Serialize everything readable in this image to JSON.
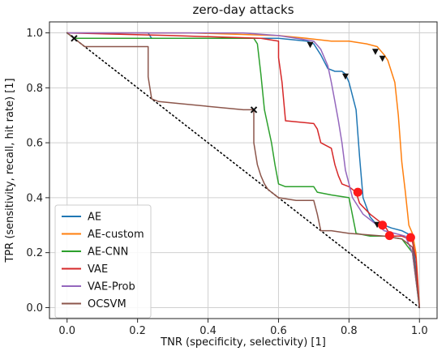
{
  "chart_data": {
    "type": "line",
    "title": "zero-day attacks",
    "xlabel": "TNR (specificity, selectivity) [1]",
    "ylabel": "TPR (sensitivity, recall, hit rate) [1]",
    "xlim": [
      -0.05,
      1.05
    ],
    "ylim": [
      -0.04,
      1.04
    ],
    "xticks": [
      "0.0",
      "0.2",
      "0.4",
      "0.6",
      "0.8",
      "1.0"
    ],
    "yticks": [
      "0.0",
      "0.2",
      "0.4",
      "0.6",
      "0.8",
      "1.0"
    ],
    "grid": true,
    "legend_position": "lower-left",
    "diagonal": {
      "x": [
        0,
        1
      ],
      "y": [
        1,
        0
      ],
      "style": "dotted",
      "color": "#000000"
    },
    "series": [
      {
        "name": "AE",
        "color": "#1f77b4",
        "x": [
          0.0,
          0.23,
          0.24,
          0.6,
          0.68,
          0.7,
          0.72,
          0.74,
          0.76,
          0.78,
          0.79,
          0.8,
          0.82,
          0.83,
          0.84,
          0.86,
          0.88,
          0.9,
          0.92,
          0.95,
          0.98,
          1.0
        ],
        "y": [
          1.0,
          1.0,
          0.98,
          0.98,
          0.97,
          0.96,
          0.92,
          0.87,
          0.86,
          0.86,
          0.85,
          0.82,
          0.72,
          0.55,
          0.4,
          0.33,
          0.3,
          0.3,
          0.29,
          0.28,
          0.26,
          0.0
        ],
        "markers": [
          {
            "x": 0.69,
            "y": 0.955,
            "symbol": "tri"
          },
          {
            "x": 0.79,
            "y": 0.84,
            "symbol": "tri"
          },
          {
            "x": 0.88,
            "y": 0.3,
            "symbol": "tri"
          }
        ]
      },
      {
        "name": "AE-custom",
        "color": "#ff7f0e",
        "x": [
          0.0,
          0.35,
          0.6,
          0.68,
          0.75,
          0.8,
          0.85,
          0.88,
          0.9,
          0.91,
          0.93,
          0.94,
          0.95,
          0.96,
          0.97,
          0.98,
          0.99,
          1.0
        ],
        "y": [
          1.0,
          1.0,
          0.99,
          0.98,
          0.97,
          0.97,
          0.96,
          0.95,
          0.92,
          0.9,
          0.82,
          0.7,
          0.53,
          0.42,
          0.3,
          0.27,
          0.2,
          0.0
        ],
        "markers": [
          {
            "x": 0.875,
            "y": 0.93,
            "symbol": "tri"
          },
          {
            "x": 0.895,
            "y": 0.905,
            "symbol": "tri"
          }
        ]
      },
      {
        "name": "AE-CNN",
        "color": "#2ca02c",
        "x": [
          0.0,
          0.01,
          0.02,
          0.23,
          0.45,
          0.53,
          0.54,
          0.55,
          0.56,
          0.58,
          0.59,
          0.6,
          0.62,
          0.7,
          0.71,
          0.75,
          0.8,
          0.82,
          0.86,
          0.9,
          0.95,
          0.98,
          1.0
        ],
        "y": [
          1.0,
          0.99,
          0.98,
          0.98,
          0.98,
          0.98,
          0.96,
          0.85,
          0.72,
          0.6,
          0.52,
          0.45,
          0.44,
          0.44,
          0.42,
          0.41,
          0.4,
          0.27,
          0.26,
          0.26,
          0.25,
          0.2,
          0.0
        ],
        "markers": []
      },
      {
        "name": "VAE",
        "color": "#d62728",
        "x": [
          0.0,
          0.3,
          0.55,
          0.6,
          0.6,
          0.61,
          0.62,
          0.7,
          0.71,
          0.72,
          0.75,
          0.76,
          0.77,
          0.78,
          0.8,
          0.82,
          0.83,
          0.86,
          0.9,
          0.92,
          0.95,
          0.97,
          0.98,
          0.99,
          1.0
        ],
        "y": [
          1.0,
          0.99,
          0.98,
          0.97,
          0.91,
          0.82,
          0.68,
          0.67,
          0.65,
          0.6,
          0.58,
          0.52,
          0.48,
          0.45,
          0.44,
          0.42,
          0.38,
          0.34,
          0.3,
          0.26,
          0.26,
          0.25,
          0.24,
          0.18,
          0.0
        ],
        "markers": [
          {
            "x": 0.825,
            "y": 0.42,
            "symbol": "circle"
          },
          {
            "x": 0.895,
            "y": 0.3,
            "symbol": "circle"
          },
          {
            "x": 0.915,
            "y": 0.262,
            "symbol": "circle"
          },
          {
            "x": 0.975,
            "y": 0.255,
            "symbol": "circle"
          }
        ]
      },
      {
        "name": "VAE-Prob",
        "color": "#9467bd",
        "x": [
          0.0,
          0.5,
          0.6,
          0.65,
          0.7,
          0.72,
          0.74,
          0.75,
          0.76,
          0.77,
          0.78,
          0.79,
          0.8,
          0.81,
          0.84,
          0.87,
          0.9,
          0.93,
          0.96,
          0.98,
          1.0
        ],
        "y": [
          1.0,
          1.0,
          0.99,
          0.98,
          0.97,
          0.94,
          0.88,
          0.82,
          0.75,
          0.68,
          0.6,
          0.5,
          0.45,
          0.4,
          0.34,
          0.31,
          0.28,
          0.27,
          0.26,
          0.2,
          0.0
        ],
        "markers": []
      },
      {
        "name": "OCSVM",
        "color": "#8c564b",
        "x": [
          0.0,
          0.01,
          0.02,
          0.05,
          0.1,
          0.23,
          0.23,
          0.24,
          0.26,
          0.5,
          0.53,
          0.53,
          0.54,
          0.55,
          0.56,
          0.57,
          0.58,
          0.59,
          0.6,
          0.65,
          0.7,
          0.71,
          0.72,
          0.75,
          0.8,
          0.9,
          0.95,
          0.98,
          1.0
        ],
        "y": [
          1.0,
          0.99,
          0.98,
          0.95,
          0.95,
          0.95,
          0.84,
          0.76,
          0.75,
          0.72,
          0.72,
          0.6,
          0.52,
          0.48,
          0.45,
          0.43,
          0.42,
          0.41,
          0.4,
          0.39,
          0.39,
          0.34,
          0.28,
          0.28,
          0.27,
          0.26,
          0.25,
          0.22,
          0.0
        ],
        "markers": [
          {
            "x": 0.53,
            "y": 0.72,
            "symbol": "x"
          },
          {
            "x": 0.02,
            "y": 0.98,
            "symbol": "x"
          }
        ]
      }
    ]
  }
}
